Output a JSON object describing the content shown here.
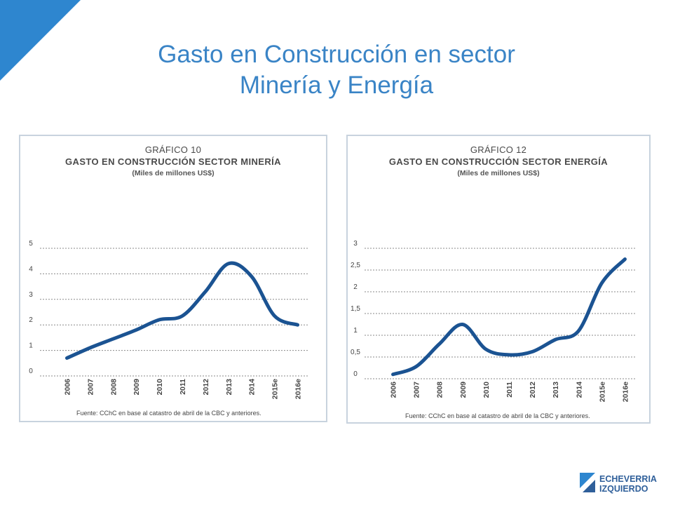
{
  "colors": {
    "brand": "#3a84c6",
    "line": "#1b5392",
    "grid": "#8a8a8a",
    "panel_border": "#c8d3de"
  },
  "slide": {
    "title_line1": "Gasto en Construcción en sector",
    "title_line2": "Minería y Energía"
  },
  "logo": {
    "line1": "ECHEVERRIA",
    "line2": "IZQUIERDO"
  },
  "chart_data": [
    {
      "type": "line",
      "label": "GRÁFICO 10",
      "title": "GASTO EN CONSTRUCCIÓN SECTOR MINERÍA",
      "subtitle": "(Miles de millones US$)",
      "source": "Fuente: CChC en base al catastro de abril de la CBC y anteriores.",
      "categories": [
        "2006",
        "2007",
        "2008",
        "2009",
        "2010",
        "2011",
        "2012",
        "2013",
        "2014",
        "2015e",
        "2016e"
      ],
      "values": [
        0.7,
        1.1,
        1.45,
        1.8,
        2.2,
        2.35,
        3.3,
        4.4,
        3.9,
        2.35,
        2.0
      ],
      "ylim": [
        0,
        5
      ],
      "yticks": [
        "0",
        "1",
        "2",
        "3",
        "4",
        "5"
      ],
      "grid": true
    },
    {
      "type": "line",
      "label": "GRÁFICO 12",
      "title": "GASTO EN CONSTRUCCIÓN SECTOR ENERGÍA",
      "subtitle": "(Miles de millones US$)",
      "source": "Fuente: CChC en base al catastro de abril de la CBC y anteriores.",
      "categories": [
        "2006",
        "2007",
        "2008",
        "2009",
        "2010",
        "2011",
        "2012",
        "2013",
        "2014",
        "2015e",
        "2016e"
      ],
      "values": [
        0.1,
        0.28,
        0.8,
        1.25,
        0.68,
        0.55,
        0.62,
        0.9,
        1.1,
        2.2,
        2.75
      ],
      "ylim": [
        0,
        3
      ],
      "yticks": [
        "0",
        "0,5",
        "1",
        "1,5",
        "2",
        "2,5",
        "3"
      ],
      "grid": true
    }
  ]
}
